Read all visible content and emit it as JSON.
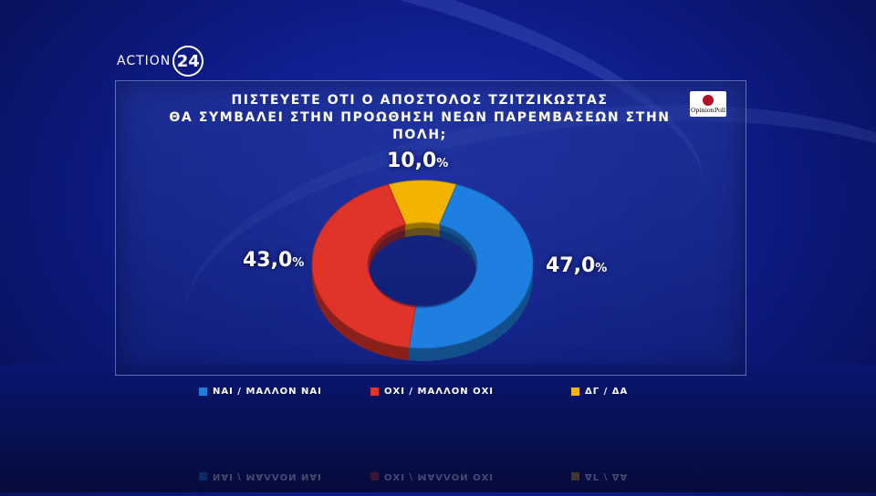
{
  "channel": {
    "logo_word": "ACTION",
    "logo_number": "24"
  },
  "pollster": {
    "name": "OpinionPoll"
  },
  "chart_data": {
    "type": "pie",
    "donut": true,
    "title_lines": [
      "ΠΙΣΤΕΥΕΤΕ ΟΤΙ Ο ΑΠΟΣΤΟΛΟΣ ΤΖΙΤΖΙΚΩΣΤΑΣ",
      "ΘΑ ΣΥΜΒΑΛΕΙ ΣΤΗΝ ΠΡΟΩΘΗΣΗ ΝΕΩΝ ΠΑΡΕΜΒΑΣΕΩΝ ΣΤΗΝ ΠΟΛΗ;"
    ],
    "slices": [
      {
        "name": "ΝΑΙ / ΜΑΛΛΟΝ ΝΑΙ",
        "value": 47.0,
        "label": "47,0",
        "color": "#1e7fe0"
      },
      {
        "name": "ΟΧΙ / ΜΑΛΛΟΝ ΟΧΙ",
        "value": 43.0,
        "label": "43,0",
        "color": "#e0332a"
      },
      {
        "name": "ΔΓ / ΔΑ",
        "value": 10.0,
        "label": "10,0",
        "color": "#f2b400"
      }
    ],
    "unit": "%",
    "legend_position": "bottom"
  }
}
